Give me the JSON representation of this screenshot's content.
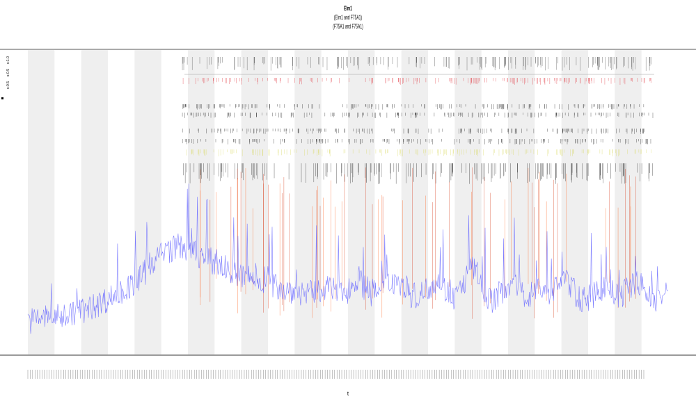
{
  "chart_data": {
    "type": "line",
    "title_lines": [
      "Elm1",
      "(Elm1 and F75A1)",
      "(F75A1 and F75A1)"
    ],
    "xlabel": "t",
    "ylabel": "",
    "legend_position": "left",
    "legend_entries": [
      {
        "name": "s-1.0",
        "color": "#000000"
      },
      {
        "name": "s-0.5",
        "color": "#e0303a"
      },
      {
        "name": "s-0.5",
        "color": "#d8d860"
      },
      {
        "name": "",
        "color": "#000000"
      }
    ],
    "band_count": 12,
    "series": [
      {
        "name": "signal",
        "color": "#6b6bff",
        "values": [
          2,
          2,
          3,
          3,
          3,
          3,
          4,
          4,
          5,
          5,
          6,
          7,
          8,
          9,
          10,
          11,
          12,
          14,
          16,
          19,
          21,
          22,
          23,
          24,
          24,
          23,
          22,
          21,
          20,
          19,
          18,
          17,
          16,
          15,
          15,
          14,
          14,
          13,
          12,
          12,
          11,
          11,
          10,
          10,
          10,
          11,
          12,
          11,
          10,
          10,
          12,
          15,
          12,
          10,
          10,
          11,
          13,
          14,
          12,
          10,
          9,
          10,
          12,
          14,
          13,
          10,
          9,
          11,
          16,
          18,
          13,
          9,
          8,
          10,
          12,
          14,
          11,
          9,
          10,
          12,
          11,
          10,
          13,
          15,
          12,
          9,
          8,
          9,
          10,
          12,
          11,
          9,
          10,
          12,
          14,
          12,
          9,
          8,
          9,
          10
        ]
      }
    ],
    "ylim": [
      0,
      60
    ]
  }
}
